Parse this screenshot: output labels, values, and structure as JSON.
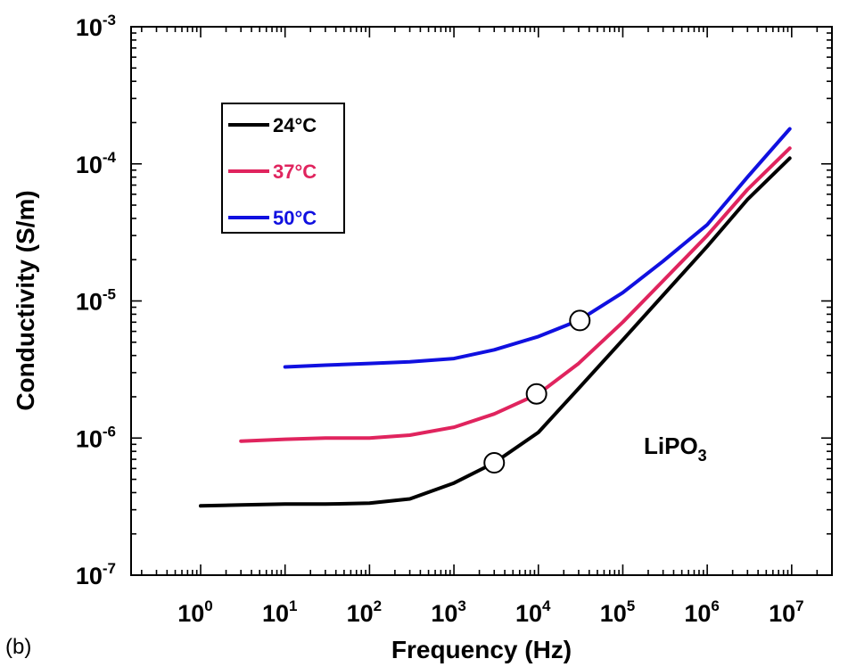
{
  "panel_label": "(b)",
  "chart_data": {
    "type": "line",
    "title": "",
    "xlabel": "Frequency (Hz)",
    "ylabel": "Conductivity (S/m)",
    "x_scale": "log",
    "y_scale": "log",
    "xlim": [
      0.15,
      30000000
    ],
    "ylim": [
      1e-07,
      0.001
    ],
    "x_ticks": [
      {
        "value": 1,
        "base": "10",
        "exp": "0"
      },
      {
        "value": 10,
        "base": "10",
        "exp": "1"
      },
      {
        "value": 100,
        "base": "10",
        "exp": "2"
      },
      {
        "value": 1000,
        "base": "10",
        "exp": "3"
      },
      {
        "value": 10000,
        "base": "10",
        "exp": "4"
      },
      {
        "value": 100000,
        "base": "10",
        "exp": "5"
      },
      {
        "value": 1000000,
        "base": "10",
        "exp": "6"
      },
      {
        "value": 10000000,
        "base": "10",
        "exp": "7"
      }
    ],
    "y_ticks": [
      {
        "value": 1e-07,
        "base": "10",
        "exp": "-7"
      },
      {
        "value": 1e-06,
        "base": "10",
        "exp": "-6"
      },
      {
        "value": 1e-05,
        "base": "10",
        "exp": "-5"
      },
      {
        "value": 0.0001,
        "base": "10",
        "exp": "-4"
      },
      {
        "value": 0.001,
        "base": "10",
        "exp": "-3"
      }
    ],
    "legend_position": "top-left",
    "annotation": {
      "text": "LiPO",
      "subscript": "3"
    },
    "series": [
      {
        "name": "24°C",
        "color": "#000000",
        "x": [
          1,
          3,
          10,
          30,
          100,
          300,
          1000,
          3000,
          10000,
          30000,
          100000,
          300000,
          1000000,
          3000000,
          9500000
        ],
        "y": [
          3.2e-07,
          3.25e-07,
          3.3e-07,
          3.3e-07,
          3.35e-07,
          3.6e-07,
          4.7e-07,
          6.6e-07,
          1.1e-06,
          2.3e-06,
          5.2e-06,
          1.1e-05,
          2.5e-05,
          5.5e-05,
          0.00011
        ]
      },
      {
        "name": "37°C",
        "color": "#e0245e",
        "x": [
          3,
          10,
          30,
          100,
          300,
          1000,
          3000,
          10000,
          30000,
          100000,
          300000,
          1000000,
          3000000,
          9500000
        ],
        "y": [
          9.5e-07,
          9.8e-07,
          1e-06,
          1e-06,
          1.05e-06,
          1.2e-06,
          1.5e-06,
          2.1e-06,
          3.5e-06,
          7e-06,
          1.4e-05,
          3e-05,
          6.5e-05,
          0.00013
        ]
      },
      {
        "name": "50°C",
        "color": "#1010e0",
        "x": [
          10,
          30,
          100,
          300,
          1000,
          3000,
          10000,
          30000,
          100000,
          300000,
          1000000,
          3000000,
          9500000
        ],
        "y": [
          3.3e-06,
          3.4e-06,
          3.5e-06,
          3.6e-06,
          3.8e-06,
          4.4e-06,
          5.5e-06,
          7.2e-06,
          1.15e-05,
          1.95e-05,
          3.6e-05,
          8e-05,
          0.00018
        ]
      }
    ],
    "markers": [
      {
        "series": "24°C",
        "x": 3000,
        "y": 6.6e-07
      },
      {
        "series": "37°C",
        "x": 9500,
        "y": 2.1e-06
      },
      {
        "series": "50°C",
        "x": 31000,
        "y": 7.2e-06
      }
    ]
  }
}
